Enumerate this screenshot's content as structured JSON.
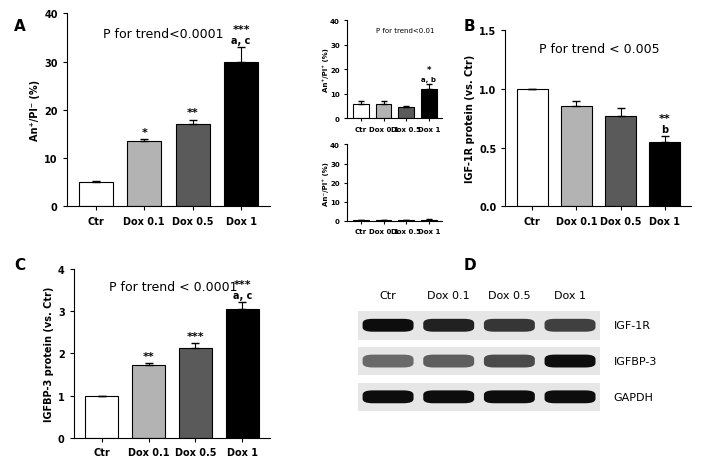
{
  "chart_data": [
    {
      "type": "bar",
      "panel_label": "A",
      "y_label": "An⁺/PI⁻ (%)",
      "annotation": "P for trend<0.0001",
      "categories": [
        "Ctr",
        "Dox 0.1",
        "Dox 0.5",
        "Dox 1"
      ],
      "values": [
        5,
        13.5,
        17,
        30
      ],
      "errors": [
        0.3,
        0.5,
        1,
        3
      ],
      "significance": [
        null,
        "*",
        "**",
        "***"
      ],
      "letters": [
        null,
        null,
        null,
        "a, c"
      ],
      "colors": [
        "#ffffff",
        "#b3b3b3",
        "#5a5a5a",
        "#000000"
      ],
      "ylim": [
        0,
        40
      ],
      "yticks": [
        0,
        10,
        20,
        30,
        40
      ]
    },
    {
      "type": "bar",
      "y_label": "An⁺/PI⁺ (%)",
      "annotation": "P for trend<0.01",
      "categories": [
        "Ctr",
        "Dox 0.1",
        "Dox 0.5",
        "Dox 1"
      ],
      "values": [
        6,
        6,
        4.5,
        12
      ],
      "errors": [
        1,
        1,
        0.4,
        2
      ],
      "significance": [
        null,
        null,
        null,
        "*"
      ],
      "letters": [
        null,
        null,
        null,
        "a, b"
      ],
      "colors": [
        "#ffffff",
        "#b3b3b3",
        "#5a5a5a",
        "#000000"
      ],
      "ylim": [
        0,
        40
      ],
      "yticks": [
        0,
        10,
        20,
        30,
        40
      ]
    },
    {
      "type": "bar",
      "y_label": "An⁻/PI⁺ (%)",
      "categories": [
        "Ctr",
        "Dox 0.1",
        "Dox 0.5",
        "Dox 1"
      ],
      "values": [
        0.2,
        0.2,
        0.4,
        0.5
      ],
      "errors": [
        0.1,
        0.1,
        0.2,
        0.2
      ],
      "significance": [
        null,
        null,
        null,
        null
      ],
      "letters": [
        null,
        null,
        null,
        null
      ],
      "colors": [
        "#ffffff",
        "#b3b3b3",
        "#5a5a5a",
        "#000000"
      ],
      "ylim": [
        0,
        40
      ],
      "yticks": [
        0,
        10,
        20,
        30,
        40
      ]
    },
    {
      "type": "bar",
      "panel_label": "B",
      "y_label": "IGF-1R protein (vs. Ctr)",
      "annotation": "P for trend < 0.005",
      "categories": [
        "Ctr",
        "Dox 0.1",
        "Dox 0.5",
        "Dox 1"
      ],
      "values": [
        1.0,
        0.85,
        0.77,
        0.55
      ],
      "errors": [
        0,
        0.05,
        0.07,
        0.05
      ],
      "significance": [
        null,
        null,
        null,
        "**"
      ],
      "letters": [
        null,
        null,
        null,
        "b"
      ],
      "colors": [
        "#ffffff",
        "#b3b3b3",
        "#5a5a5a",
        "#000000"
      ],
      "ylim": [
        0,
        1.5
      ],
      "yticks": [
        {
          "value": 0,
          "label": "0.0"
        },
        {
          "value": 0.5,
          "label": "0.5"
        },
        {
          "value": 1,
          "label": "1.0"
        },
        {
          "value": 1.5,
          "label": "1.5"
        }
      ]
    },
    {
      "type": "bar",
      "panel_label": "C",
      "y_label": "IGFBP-3 protein (vs. Ctr)",
      "annotation": "P for trend < 0.0001",
      "categories": [
        "Ctr",
        "Dox 0.1",
        "Dox 0.5",
        "Dox 1"
      ],
      "values": [
        1,
        1.72,
        2.13,
        3.05
      ],
      "errors": [
        0,
        0.05,
        0.12,
        0.15
      ],
      "significance": [
        null,
        "**",
        "***",
        "***"
      ],
      "letters": [
        null,
        null,
        null,
        "a, c"
      ],
      "colors": [
        "#ffffff",
        "#b3b3b3",
        "#5a5a5a",
        "#000000"
      ],
      "ylim": [
        0,
        4
      ],
      "yticks": [
        0,
        1,
        2,
        3,
        4
      ]
    }
  ],
  "blot": {
    "panel_label": "D",
    "lanes": [
      "Ctr",
      "Dox 0.1",
      "Dox 0.5",
      "Dox 1"
    ],
    "bands": [
      {
        "name": "IGF-1R",
        "intensities": [
          1.0,
          0.9,
          0.8,
          0.75
        ]
      },
      {
        "name": "IGFBP-3",
        "intensities": [
          0.55,
          0.6,
          0.7,
          1.0
        ]
      },
      {
        "name": "GAPDH",
        "intensities": [
          1.0,
          1.0,
          1.0,
          1.0
        ]
      }
    ]
  }
}
